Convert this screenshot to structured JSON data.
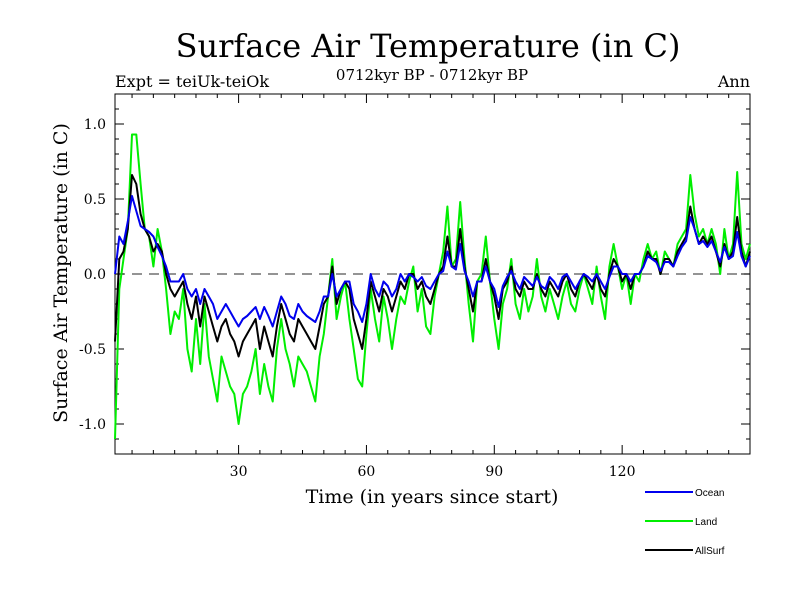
{
  "chart_data": {
    "type": "line",
    "title": "Surface Air Temperature (in C)",
    "subtitle": "0712kyr BP - 0712kyr BP",
    "left_note": "Expt = teiUk-teiOk",
    "right_note": "Ann",
    "xlabel": "Time (in years since start)",
    "ylabel": "Surface Air Temperature (in C)",
    "xlim": [
      1,
      150
    ],
    "ylim": [
      -1.2,
      1.2
    ],
    "xticks": [
      30,
      60,
      90,
      120
    ],
    "xtick_labels": [
      "30",
      "60",
      "90",
      "120"
    ],
    "yticks": [
      -1.0,
      -0.5,
      0.0,
      0.5,
      1.0
    ],
    "ytick_labels": [
      "-1.0",
      "-0.5",
      "0.0",
      "0.5",
      "1.0"
    ],
    "zero_line": 0.0,
    "legend_position": "bottom-right",
    "series": [
      {
        "name": "Land",
        "color": "#00ee00",
        "values": [
          -1.1,
          -0.1,
          0.1,
          0.3,
          0.93,
          0.93,
          0.6,
          0.3,
          0.25,
          0.05,
          0.3,
          0.15,
          -0.1,
          -0.4,
          -0.25,
          -0.3,
          -0.1,
          -0.5,
          -0.65,
          -0.3,
          -0.6,
          -0.2,
          -0.55,
          -0.7,
          -0.85,
          -0.55,
          -0.65,
          -0.75,
          -0.8,
          -1.0,
          -0.8,
          -0.75,
          -0.65,
          -0.5,
          -0.8,
          -0.6,
          -0.75,
          -0.85,
          -0.5,
          -0.3,
          -0.5,
          -0.6,
          -0.75,
          -0.55,
          -0.6,
          -0.65,
          -0.75,
          -0.85,
          -0.55,
          -0.4,
          -0.15,
          0.1,
          -0.3,
          -0.15,
          -0.05,
          -0.3,
          -0.5,
          -0.7,
          -0.75,
          -0.4,
          -0.1,
          -0.3,
          -0.45,
          -0.15,
          -0.3,
          -0.5,
          -0.3,
          -0.15,
          -0.2,
          -0.05,
          0.05,
          -0.25,
          -0.1,
          -0.35,
          -0.4,
          -0.15,
          0.0,
          0.15,
          0.45,
          0.05,
          0.1,
          0.48,
          0.1,
          -0.2,
          -0.45,
          -0.05,
          0.0,
          0.25,
          -0.05,
          -0.3,
          -0.5,
          -0.2,
          -0.1,
          0.1,
          -0.2,
          -0.3,
          -0.1,
          -0.25,
          -0.15,
          0.1,
          -0.15,
          -0.25,
          -0.1,
          -0.2,
          -0.3,
          -0.15,
          -0.05,
          -0.2,
          -0.25,
          -0.1,
          0.0,
          -0.1,
          -0.2,
          0.05,
          -0.15,
          -0.3,
          0.05,
          0.2,
          0.05,
          -0.1,
          0.0,
          -0.2,
          0.0,
          -0.05,
          0.1,
          0.2,
          0.1,
          0.15,
          0.0,
          0.15,
          0.1,
          0.05,
          0.2,
          0.25,
          0.3,
          0.66,
          0.4,
          0.25,
          0.3,
          0.2,
          0.3,
          0.2,
          0.0,
          0.3,
          0.1,
          0.2,
          0.68,
          0.2,
          0.1,
          0.2
        ]
      },
      {
        "name": "AllSurf",
        "color": "#000000",
        "values": [
          -0.45,
          0.1,
          0.15,
          0.3,
          0.66,
          0.6,
          0.4,
          0.3,
          0.25,
          0.15,
          0.2,
          0.15,
          0.0,
          -0.1,
          -0.15,
          -0.1,
          -0.05,
          -0.2,
          -0.3,
          -0.15,
          -0.35,
          -0.15,
          -0.25,
          -0.35,
          -0.45,
          -0.35,
          -0.3,
          -0.4,
          -0.45,
          -0.55,
          -0.45,
          -0.4,
          -0.35,
          -0.3,
          -0.5,
          -0.35,
          -0.45,
          -0.55,
          -0.35,
          -0.2,
          -0.3,
          -0.4,
          -0.45,
          -0.3,
          -0.35,
          -0.4,
          -0.45,
          -0.5,
          -0.35,
          -0.2,
          -0.15,
          0.05,
          -0.2,
          -0.1,
          -0.05,
          -0.1,
          -0.3,
          -0.4,
          -0.5,
          -0.3,
          -0.05,
          -0.15,
          -0.25,
          -0.1,
          -0.15,
          -0.25,
          -0.15,
          -0.05,
          -0.1,
          0.0,
          0.0,
          -0.1,
          -0.05,
          -0.15,
          -0.2,
          -0.1,
          0.0,
          0.05,
          0.25,
          0.05,
          0.05,
          0.3,
          0.05,
          -0.1,
          -0.25,
          -0.05,
          -0.05,
          0.1,
          -0.05,
          -0.15,
          -0.3,
          -0.1,
          -0.05,
          0.05,
          -0.1,
          -0.15,
          -0.05,
          -0.1,
          -0.1,
          0.0,
          -0.1,
          -0.15,
          -0.05,
          -0.1,
          -0.15,
          -0.05,
          0.0,
          -0.1,
          -0.15,
          -0.05,
          0.0,
          -0.05,
          -0.1,
          0.0,
          -0.1,
          -0.15,
          0.0,
          0.1,
          0.05,
          -0.05,
          0.0,
          -0.1,
          0.0,
          0.0,
          0.05,
          0.15,
          0.1,
          0.1,
          0.0,
          0.1,
          0.1,
          0.05,
          0.15,
          0.2,
          0.25,
          0.45,
          0.3,
          0.2,
          0.25,
          0.2,
          0.25,
          0.15,
          0.05,
          0.2,
          0.1,
          0.15,
          0.38,
          0.15,
          0.05,
          0.15
        ]
      },
      {
        "name": "Ocean",
        "color": "#0000ee",
        "values": [
          0.0,
          0.25,
          0.2,
          0.35,
          0.52,
          0.42,
          0.32,
          0.3,
          0.28,
          0.25,
          0.18,
          0.12,
          0.05,
          -0.05,
          -0.05,
          -0.05,
          0.0,
          -0.1,
          -0.15,
          -0.1,
          -0.2,
          -0.1,
          -0.15,
          -0.2,
          -0.3,
          -0.25,
          -0.2,
          -0.25,
          -0.3,
          -0.35,
          -0.3,
          -0.28,
          -0.25,
          -0.22,
          -0.3,
          -0.22,
          -0.28,
          -0.35,
          -0.25,
          -0.15,
          -0.2,
          -0.28,
          -0.3,
          -0.2,
          -0.25,
          -0.28,
          -0.3,
          -0.32,
          -0.25,
          -0.15,
          -0.15,
          0.0,
          -0.15,
          -0.1,
          -0.05,
          -0.05,
          -0.2,
          -0.25,
          -0.32,
          -0.2,
          0.0,
          -0.1,
          -0.15,
          -0.05,
          -0.08,
          -0.15,
          -0.1,
          0.0,
          -0.05,
          0.0,
          -0.02,
          -0.05,
          -0.02,
          -0.08,
          -0.1,
          -0.05,
          0.0,
          0.02,
          0.15,
          0.05,
          0.03,
          0.2,
          0.02,
          -0.05,
          -0.15,
          -0.05,
          -0.05,
          0.05,
          -0.05,
          -0.1,
          -0.22,
          -0.08,
          -0.02,
          0.02,
          -0.05,
          -0.1,
          -0.02,
          -0.05,
          -0.08,
          -0.02,
          -0.08,
          -0.1,
          -0.02,
          -0.05,
          -0.1,
          -0.02,
          0.0,
          -0.05,
          -0.1,
          -0.05,
          0.0,
          -0.02,
          -0.05,
          0.0,
          -0.05,
          -0.1,
          -0.02,
          0.05,
          0.05,
          0.0,
          0.0,
          -0.05,
          0.0,
          0.0,
          0.05,
          0.12,
          0.1,
          0.08,
          0.02,
          0.08,
          0.08,
          0.05,
          0.12,
          0.18,
          0.22,
          0.38,
          0.3,
          0.2,
          0.22,
          0.18,
          0.22,
          0.15,
          0.08,
          0.18,
          0.1,
          0.12,
          0.28,
          0.12,
          0.05,
          0.12
        ]
      }
    ]
  }
}
